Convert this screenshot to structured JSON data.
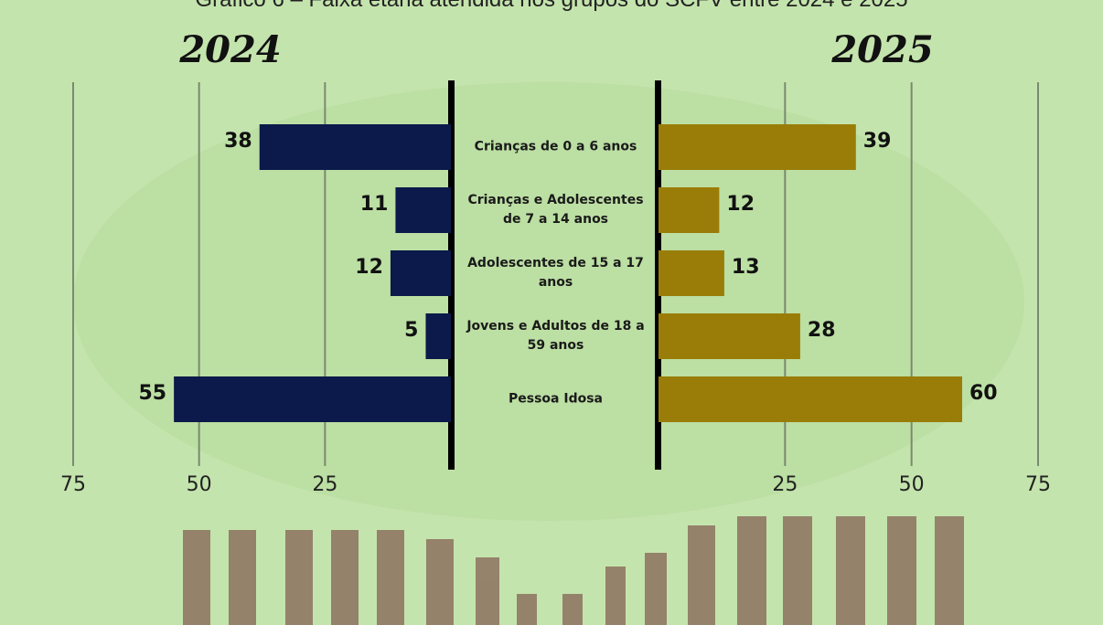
{
  "chart_data": {
    "type": "bar",
    "orientation": "horizontal",
    "title": "Gráfico 6 – Faixa etária atendida nos grupos do SCFV entre 2024 e 2025",
    "categories": [
      "Crianças de 0 a 6 anos",
      "Crianças e Adolescentes de 7 a 14 anos",
      "Adolescentes de 15 a 17 anos",
      "Jovens e Adultos de 18 a 59 anos",
      "Pessoa Idosa"
    ],
    "series": [
      {
        "name": "2024",
        "color": "#0b1a4a",
        "values": [
          38,
          11,
          12,
          5,
          55
        ]
      },
      {
        "name": "2025",
        "color": "#9a7d08",
        "values": [
          39,
          12,
          13,
          28,
          60
        ]
      }
    ],
    "xlim": [
      0,
      75
    ],
    "xticks": [
      25,
      50,
      75
    ],
    "grid": true
  }
}
